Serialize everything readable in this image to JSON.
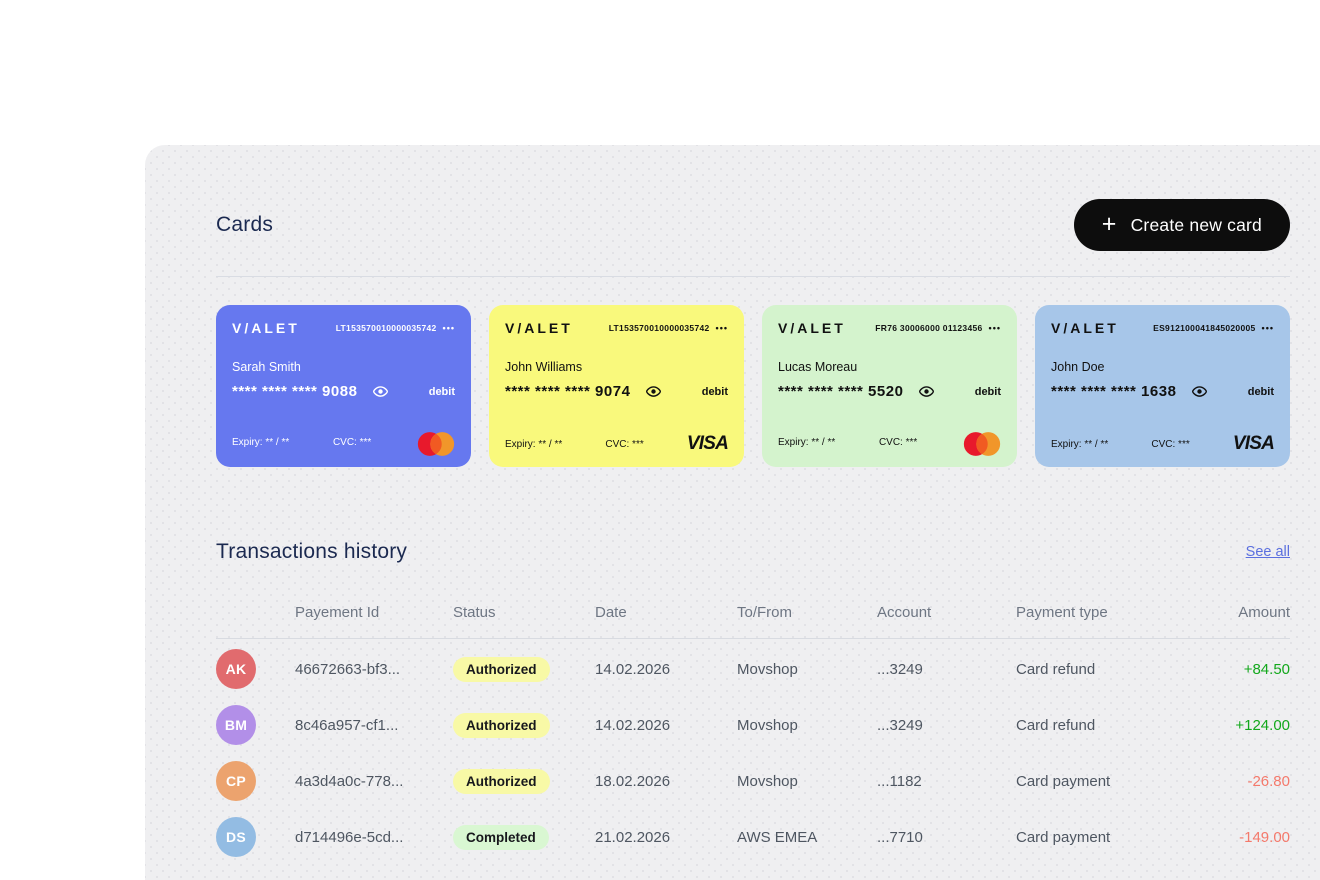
{
  "icons": {
    "plus": "+",
    "menu_dots": "•••"
  },
  "colors": {
    "panel_bg": "#efeff1",
    "title_navy": "#1b2950",
    "button_bg": "#0d0d0d",
    "link_blue": "#5b6fdf",
    "amount_positive": "#13a81c",
    "amount_negative": "#f4796b"
  },
  "cards_section": {
    "title": "Cards",
    "create_button": {
      "label": "Create new card"
    },
    "cards": [
      {
        "brand": "V/ALET",
        "iban": "LT153570010000035742",
        "holder": "Sarah Smith",
        "masked_number": "**** **** **** 9088",
        "type_label": "debit",
        "expiry_label": "Expiry:",
        "expiry_value": "** / **",
        "cvc_label": "CVC:",
        "cvc_value": "***",
        "network": "mastercard",
        "network_label": "",
        "bg": "#6678ef",
        "text": "#ffffff"
      },
      {
        "brand": "V/ALET",
        "iban": "LT153570010000035742",
        "holder": "John Williams",
        "masked_number": "**** **** **** 9074",
        "type_label": "debit",
        "expiry_label": "Expiry:",
        "expiry_value": "** / **",
        "cvc_label": "CVC:",
        "cvc_value": "***",
        "network": "visa",
        "network_label": "VISA",
        "bg": "#f9f97c",
        "text": "#111111"
      },
      {
        "brand": "V/ALET",
        "iban": "FR76 30006000 01123456",
        "holder": "Lucas Moreau",
        "masked_number": "**** **** **** 5520",
        "type_label": "debit",
        "expiry_label": "Expiry:",
        "expiry_value": "** / **",
        "cvc_label": "CVC:",
        "cvc_value": "***",
        "network": "mastercard",
        "network_label": "",
        "bg": "#d4f3cd",
        "text": "#111111"
      },
      {
        "brand": "V/ALET",
        "iban": "ES912100041845020005",
        "holder": "John Doe",
        "masked_number": "**** **** **** 1638",
        "type_label": "debit",
        "expiry_label": "Expiry:",
        "expiry_value": "** / **",
        "cvc_label": "CVC:",
        "cvc_value": "***",
        "network": "visa",
        "network_label": "VISA",
        "bg": "#a7c6e9",
        "text": "#111111"
      }
    ]
  },
  "transactions": {
    "title": "Transactions history",
    "see_all": "See all",
    "columns": [
      "Payement Id",
      "Status",
      "Date",
      "To/From",
      "Account",
      "Payment type",
      "Amount"
    ],
    "status_colors": {
      "Authorized": "#f8f9a6",
      "Completed": "#d9f7d2"
    },
    "amount_colors": {
      "positive": "#13a81c",
      "negative": "#f4796b"
    },
    "rows": [
      {
        "initials": "AK",
        "avatar_color": "#e16b6e",
        "payment_id": "46672663-bf3...",
        "status": "Authorized",
        "date": "14.02.2026",
        "to_from": "Movshop",
        "account": "...3249",
        "payment_type": "Card refund",
        "amount": "+84.50"
      },
      {
        "initials": "BM",
        "avatar_color": "#b28fe8",
        "payment_id": "8c46a957-cf1...",
        "status": "Authorized",
        "date": "14.02.2026",
        "to_from": "Movshop",
        "account": "...3249",
        "payment_type": "Card refund",
        "amount": "+124.00"
      },
      {
        "initials": "CP",
        "avatar_color": "#eca36e",
        "payment_id": "4a3d4a0c-778...",
        "status": "Authorized",
        "date": "18.02.2026",
        "to_from": "Movshop",
        "account": "...1182",
        "payment_type": "Card payment",
        "amount": "-26.80"
      },
      {
        "initials": "DS",
        "avatar_color": "#93bce3",
        "payment_id": "d714496e-5cd...",
        "status": "Completed",
        "date": "21.02.2026",
        "to_from": "AWS EMEA",
        "account": "...7710",
        "payment_type": "Card payment",
        "amount": "-149.00"
      }
    ]
  }
}
